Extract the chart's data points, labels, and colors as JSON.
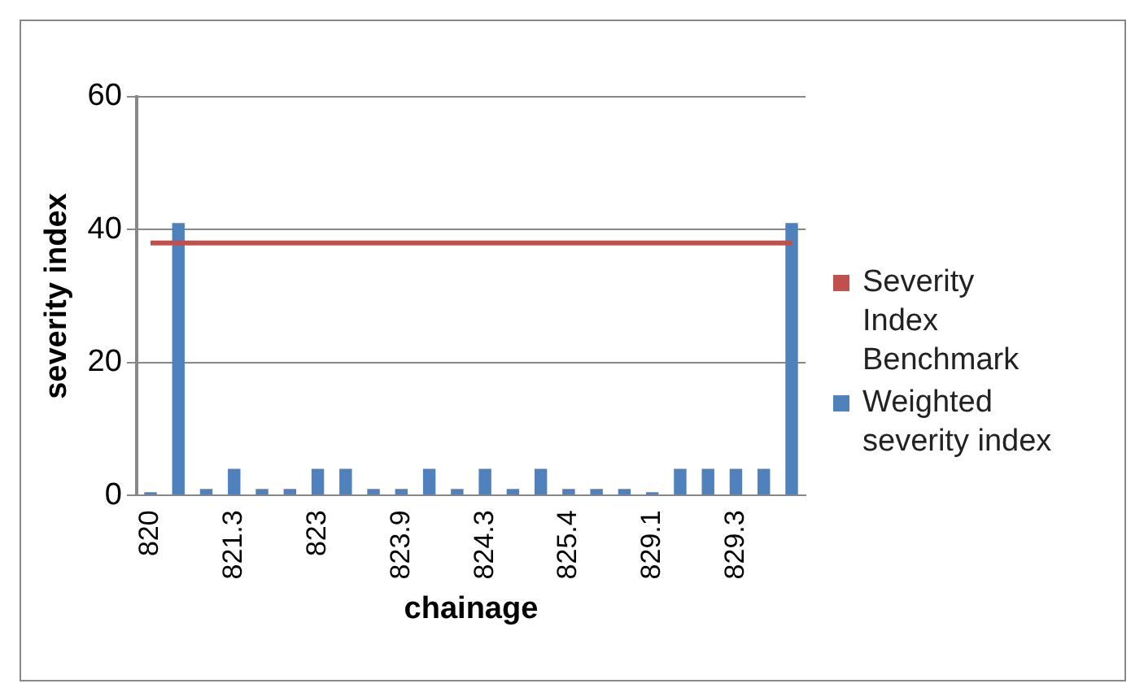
{
  "chart_data": {
    "type": "bar",
    "xlabel": "chainage",
    "ylabel": "severity index",
    "categories": [
      "820",
      null,
      null,
      "821.3",
      null,
      null,
      "823",
      null,
      null,
      "823.9",
      null,
      null,
      "824.3",
      null,
      null,
      "825.4",
      null,
      null,
      "829.1",
      null,
      null,
      "829.3",
      null,
      null
    ],
    "series": [
      {
        "name": "Severity Index Benchmark",
        "type": "line",
        "color": "#c0504d",
        "values": [
          38,
          38,
          38,
          38,
          38,
          38,
          38,
          38,
          38,
          38,
          38,
          38,
          38,
          38,
          38,
          38,
          38,
          38,
          38,
          38,
          38,
          38,
          38,
          38
        ]
      },
      {
        "name": "Weighted severity index",
        "color": "#4f81bd",
        "values": [
          0.5,
          41,
          1,
          4,
          1,
          1,
          4,
          4,
          1,
          1,
          4,
          1,
          4,
          1,
          4,
          1,
          1,
          1,
          0.5,
          4,
          4,
          4,
          4,
          41
        ]
      }
    ],
    "ylim": [
      0,
      60
    ],
    "yticks": [
      0,
      20,
      40,
      60
    ],
    "grid": "y",
    "legend": "right",
    "marker": "none"
  }
}
